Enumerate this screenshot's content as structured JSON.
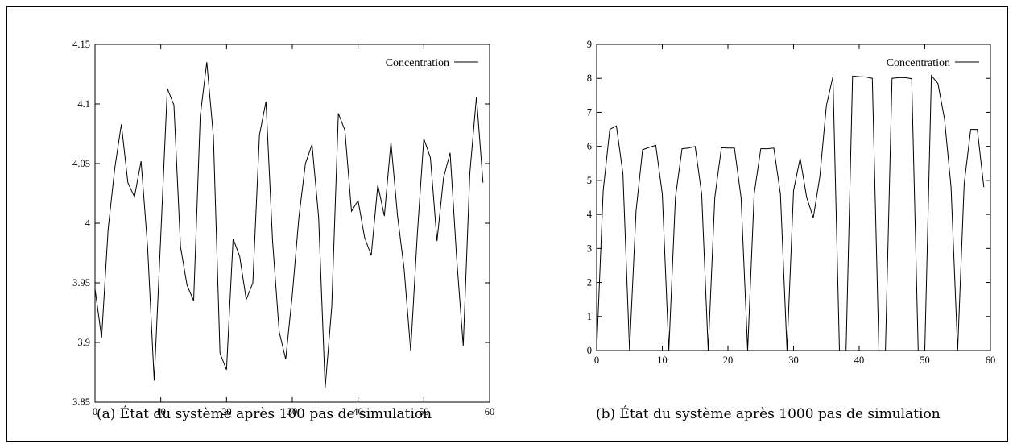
{
  "captions": {
    "a": "(a) État du système après 100 pas de simulation",
    "b": "(b) État du système après 1000 pas de simulation"
  },
  "chart_data": [
    {
      "type": "line",
      "title": "",
      "xlabel": "",
      "ylabel": "",
      "xlim": [
        0,
        60
      ],
      "ylim": [
        3.85,
        4.15
      ],
      "xticks": [
        0,
        10,
        20,
        30,
        40,
        50,
        60
      ],
      "yticks": [
        3.85,
        3.9,
        3.95,
        4.0,
        4.05,
        4.1,
        4.15
      ],
      "ytick_labels": [
        "3.85",
        "3.9",
        "3.95",
        "4",
        "4.05",
        "4.1",
        "4.15"
      ],
      "grid": false,
      "legend_position": "top-right",
      "series": [
        {
          "name": "Concentration",
          "x": [
            0,
            1,
            2,
            3,
            4,
            5,
            6,
            7,
            8,
            9,
            10,
            11,
            12,
            13,
            14,
            15,
            16,
            17,
            18,
            19,
            20,
            21,
            22,
            23,
            24,
            25,
            26,
            27,
            28,
            29,
            30,
            31,
            32,
            33,
            34,
            35,
            36,
            37,
            38,
            39,
            40,
            41,
            42,
            43,
            44,
            45,
            46,
            47,
            48,
            49,
            50,
            51,
            52,
            53,
            54,
            55,
            56,
            57,
            58,
            59
          ],
          "y": [
            3.945,
            3.904,
            3.995,
            4.046,
            4.083,
            4.034,
            4.022,
            4.052,
            3.98,
            3.868,
            3.99,
            4.113,
            4.099,
            3.98,
            3.948,
            3.935,
            4.09,
            4.135,
            4.073,
            3.891,
            3.877,
            3.987,
            3.972,
            3.936,
            3.95,
            4.074,
            4.102,
            3.985,
            3.909,
            3.886,
            3.94,
            4.005,
            4.05,
            4.066,
            4.005,
            3.862,
            3.93,
            4.092,
            4.078,
            4.01,
            4.019,
            3.988,
            3.973,
            4.032,
            4.006,
            4.068,
            4.006,
            3.962,
            3.893,
            3.99,
            4.071,
            4.055,
            3.985,
            4.038,
            4.059,
            3.97,
            3.897,
            4.042,
            4.106,
            4.034
          ]
        }
      ]
    },
    {
      "type": "line",
      "title": "",
      "xlabel": "",
      "ylabel": "",
      "xlim": [
        0,
        60
      ],
      "ylim": [
        0,
        9
      ],
      "xticks": [
        0,
        10,
        20,
        30,
        40,
        50,
        60
      ],
      "yticks": [
        0,
        1,
        2,
        3,
        4,
        5,
        6,
        7,
        8,
        9
      ],
      "ytick_labels": [
        "0",
        "1",
        "2",
        "3",
        "4",
        "5",
        "6",
        "7",
        "8",
        "9"
      ],
      "grid": false,
      "legend_position": "top-right",
      "series": [
        {
          "name": "Concentration",
          "x": [
            0,
            1,
            2,
            3,
            4,
            5,
            6,
            7,
            8,
            9,
            10,
            11,
            12,
            13,
            14,
            15,
            16,
            17,
            18,
            19,
            20,
            21,
            22,
            23,
            24,
            25,
            26,
            27,
            28,
            29,
            30,
            31,
            32,
            33,
            34,
            35,
            36,
            37,
            38,
            39,
            40,
            41,
            42,
            43,
            44,
            45,
            46,
            47,
            48,
            49,
            50,
            51,
            52,
            53,
            54,
            55,
            56,
            57,
            58,
            59
          ],
          "y": [
            0,
            4.7,
            6.5,
            6.6,
            5.2,
            0,
            4.1,
            5.9,
            5.97,
            6.03,
            4.6,
            0,
            4.5,
            5.93,
            5.95,
            6.0,
            4.6,
            0,
            4.5,
            5.96,
            5.95,
            5.95,
            4.5,
            0,
            4.6,
            5.93,
            5.93,
            5.95,
            4.6,
            0,
            4.7,
            5.65,
            4.5,
            3.9,
            5.1,
            7.2,
            8.05,
            0,
            0,
            8.07,
            8.05,
            8.04,
            8.0,
            0,
            0,
            8.0,
            8.02,
            8.02,
            7.99,
            0,
            0,
            8.08,
            7.85,
            6.8,
            4.8,
            0,
            4.9,
            6.5,
            6.5,
            4.8
          ]
        }
      ]
    }
  ]
}
